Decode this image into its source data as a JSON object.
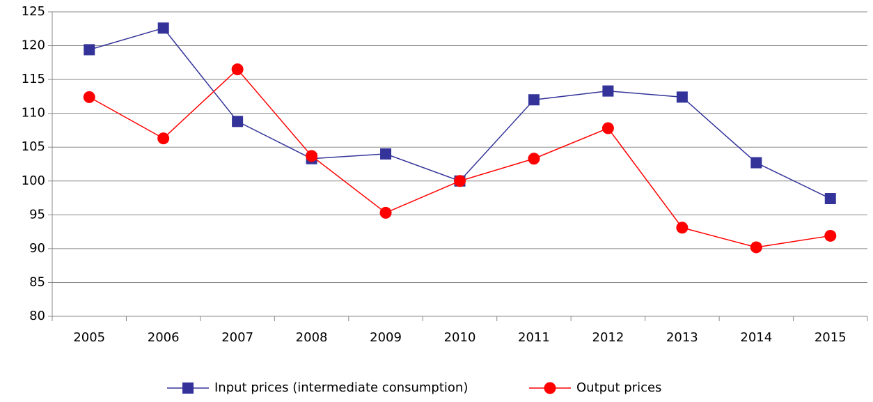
{
  "chart_data": {
    "type": "line",
    "categories": [
      "2005",
      "2006",
      "2007",
      "2008",
      "2009",
      "2010",
      "2011",
      "2012",
      "2013",
      "2014",
      "2015"
    ],
    "series": [
      {
        "name": "Input prices (intermediate consumption)",
        "color": "#333399",
        "marker": "square",
        "values": [
          119.4,
          122.6,
          108.8,
          103.3,
          104.0,
          100,
          112.0,
          113.3,
          112.4,
          102.7,
          97.4
        ]
      },
      {
        "name": "Output prices",
        "color": "#ff0000",
        "marker": "circle",
        "values": [
          112.4,
          106.3,
          116.5,
          103.7,
          95.3,
          100,
          103.3,
          107.8,
          93.1,
          90.2,
          91.9
        ]
      }
    ],
    "ylim": [
      80,
      125
    ],
    "yticks": [
      80,
      85,
      90,
      95,
      100,
      105,
      110,
      115,
      120,
      125
    ],
    "grid": true,
    "legend": "bottom"
  }
}
